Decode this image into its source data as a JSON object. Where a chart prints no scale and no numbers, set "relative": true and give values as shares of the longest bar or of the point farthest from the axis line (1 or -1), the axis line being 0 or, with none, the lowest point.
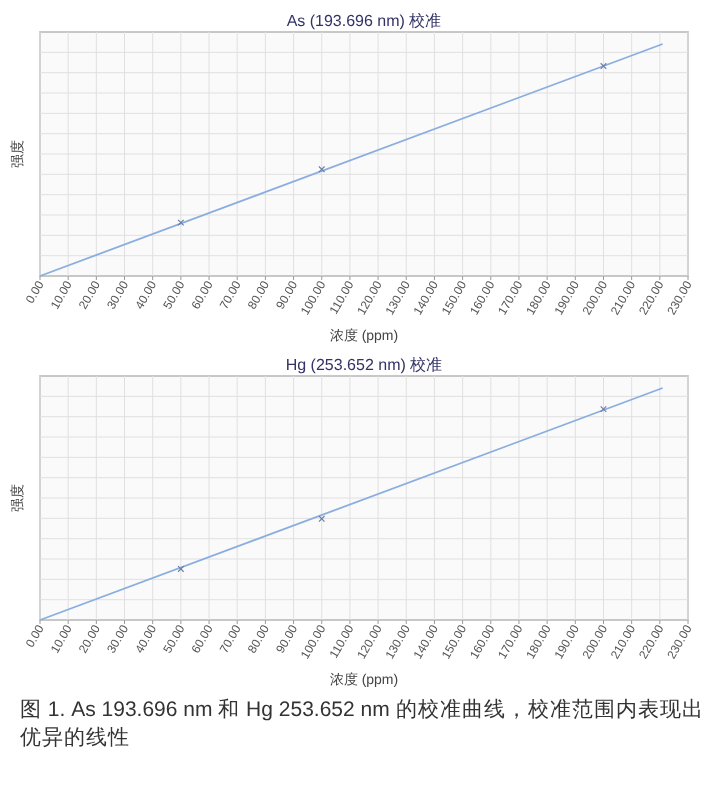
{
  "chart_data": [
    {
      "type": "scatter",
      "title": "As (193.696 nm) 校准",
      "xlabel": "浓度 (ppm)",
      "ylabel": "强度",
      "relative": true,
      "grid": true,
      "xlim": [
        0,
        230
      ],
      "xticks": [
        {
          "value": 0,
          "label": "0.00"
        },
        {
          "value": 10,
          "label": "10.00"
        },
        {
          "value": 20,
          "label": "20.00"
        },
        {
          "value": 30,
          "label": "30.00"
        },
        {
          "value": 40,
          "label": "40.00"
        },
        {
          "value": 50,
          "label": "50.00"
        },
        {
          "value": 60,
          "label": "60.00"
        },
        {
          "value": 70,
          "label": "70.00"
        },
        {
          "value": 80,
          "label": "80.00"
        },
        {
          "value": 90,
          "label": "90.00"
        },
        {
          "value": 100,
          "label": "100.00"
        },
        {
          "value": 110,
          "label": "110.00"
        },
        {
          "value": 120,
          "label": "120.00"
        },
        {
          "value": 130,
          "label": "130.00"
        },
        {
          "value": 140,
          "label": "140.00"
        },
        {
          "value": 150,
          "label": "150.00"
        },
        {
          "value": 160,
          "label": "160.00"
        },
        {
          "value": 170,
          "label": "170.00"
        },
        {
          "value": 180,
          "label": "180.00"
        },
        {
          "value": 190,
          "label": "190.00"
        },
        {
          "value": 200,
          "label": "200.00"
        },
        {
          "value": 210,
          "label": "210.00"
        },
        {
          "value": 220,
          "label": "220.00"
        },
        {
          "value": 230,
          "label": "230.00"
        }
      ],
      "series": [
        {
          "type": "line",
          "color": "#8aaee0",
          "x": [
            0,
            221
          ],
          "values": [
            0,
            1
          ]
        },
        {
          "color": "#6d7fa6",
          "x": [
            50,
            100,
            200
          ],
          "values": [
            0.23,
            0.46,
            0.905
          ],
          "marker": "cross"
        }
      ]
    },
    {
      "type": "scatter",
      "title": "Hg (253.652 nm) 校准",
      "xlabel": "浓度 (ppm)",
      "ylabel": "强度",
      "relative": true,
      "grid": true,
      "xlim": [
        0,
        230
      ],
      "xticks": [
        {
          "value": 0,
          "label": "0.00"
        },
        {
          "value": 10,
          "label": "10.00"
        },
        {
          "value": 20,
          "label": "20.00"
        },
        {
          "value": 30,
          "label": "30.00"
        },
        {
          "value": 40,
          "label": "40.00"
        },
        {
          "value": 50,
          "label": "50.00"
        },
        {
          "value": 60,
          "label": "60.00"
        },
        {
          "value": 70,
          "label": "70.00"
        },
        {
          "value": 80,
          "label": "80.00"
        },
        {
          "value": 90,
          "label": "90.00"
        },
        {
          "value": 100,
          "label": "100.00"
        },
        {
          "value": 110,
          "label": "110.00"
        },
        {
          "value": 120,
          "label": "120.00"
        },
        {
          "value": 130,
          "label": "130.00"
        },
        {
          "value": 140,
          "label": "140.00"
        },
        {
          "value": 150,
          "label": "150.00"
        },
        {
          "value": 160,
          "label": "160.00"
        },
        {
          "value": 170,
          "label": "170.00"
        },
        {
          "value": 180,
          "label": "180.00"
        },
        {
          "value": 190,
          "label": "190.00"
        },
        {
          "value": 200,
          "label": "200.00"
        },
        {
          "value": 210,
          "label": "210.00"
        },
        {
          "value": 220,
          "label": "220.00"
        },
        {
          "value": 230,
          "label": "230.00"
        }
      ],
      "series": [
        {
          "type": "line",
          "color": "#8aaee0",
          "x": [
            0,
            221
          ],
          "values": [
            0,
            1
          ]
        },
        {
          "color": "#6d7fa6",
          "x": [
            50,
            100,
            200
          ],
          "values": [
            0.22,
            0.436,
            0.909
          ],
          "marker": "cross"
        }
      ],
      "annotations": [
        "图 1. As 193.696 nm 和 Hg 253.652 nm 的校准曲线，校准范围内表现出优异的线性"
      ]
    }
  ]
}
